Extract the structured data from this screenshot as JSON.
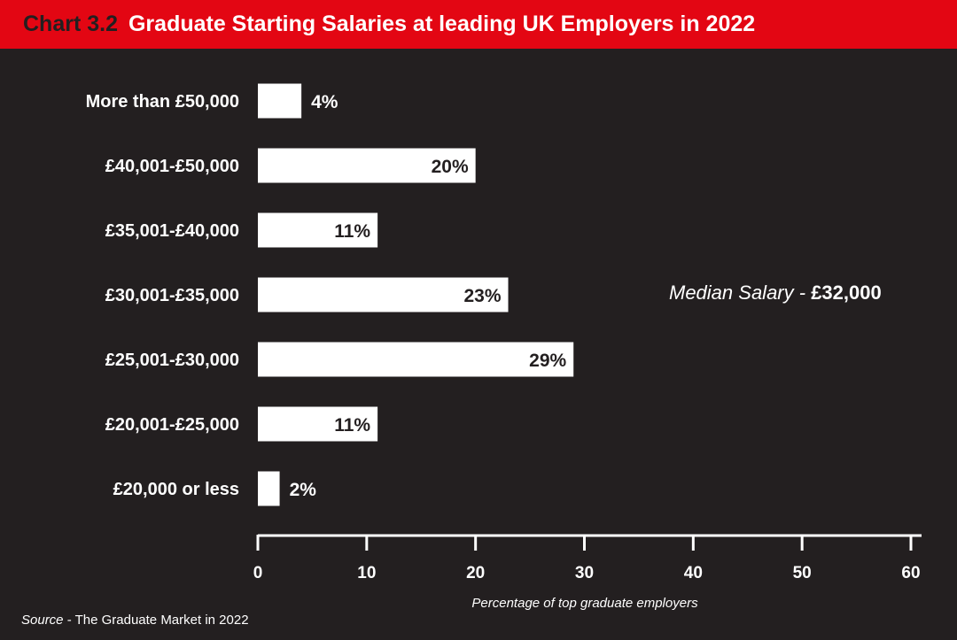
{
  "header": {
    "number": "Chart 3.2",
    "title": "Graduate Starting Salaries at leading UK Employers in 2022"
  },
  "annotation": {
    "label": "Median Salary - ",
    "value": "£32,000"
  },
  "source": {
    "label": "Source",
    "text": " - The Graduate Market in 2022"
  },
  "colors": {
    "background": "#231f20",
    "header": "#e30613",
    "bar": "#ffffff",
    "text": "#ffffff"
  },
  "chart_data": {
    "type": "bar",
    "orientation": "horizontal",
    "categories": [
      "More than £50,000",
      "£40,001-£50,000",
      "£35,001-£40,000",
      "£30,001-£35,000",
      "£25,001-£30,000",
      "£20,001-£25,000",
      "£20,000 or less"
    ],
    "values": [
      4,
      20,
      11,
      23,
      29,
      11,
      2
    ],
    "value_labels": [
      "4%",
      "20%",
      "11%",
      "23%",
      "29%",
      "11%",
      "2%"
    ],
    "xlabel": "Percentage of top graduate employers",
    "ylabel": "",
    "xlim": [
      0,
      60
    ],
    "xticks": [
      0,
      10,
      20,
      30,
      40,
      50,
      60
    ],
    "grid": false,
    "legend": "none"
  }
}
